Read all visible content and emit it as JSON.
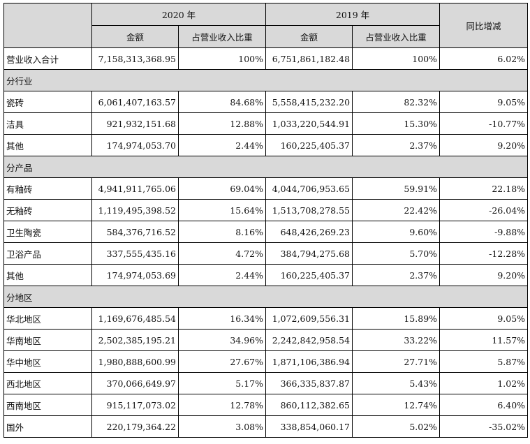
{
  "header": {
    "year_2020": "2020 年",
    "year_2019": "2019 年",
    "yoy_change": "同比增减",
    "amount_2020": "金额",
    "ratio_2020": "占营业收入比重",
    "amount_2019": "金额",
    "ratio_2019": "占营业收入比重"
  },
  "total": {
    "label": "营业收入合计",
    "amount_2020": "7,158,313,368.95",
    "ratio_2020": "100%",
    "amount_2019": "6,751,861,182.48",
    "ratio_2019": "100%",
    "yoy": "6.02%"
  },
  "sections": [
    {
      "title": "分行业",
      "rows": [
        {
          "label": "瓷砖",
          "amount_2020": "6,061,407,163.57",
          "ratio_2020": "84.68%",
          "amount_2019": "5,558,415,232.20",
          "ratio_2019": "82.32%",
          "yoy": "9.05%"
        },
        {
          "label": "洁具",
          "amount_2020": "921,932,151.68",
          "ratio_2020": "12.88%",
          "amount_2019": "1,033,220,544.91",
          "ratio_2019": "15.30%",
          "yoy": "-10.77%"
        },
        {
          "label": "其他",
          "amount_2020": "174,974,053.70",
          "ratio_2020": "2.44%",
          "amount_2019": "160,225,405.37",
          "ratio_2019": "2.37%",
          "yoy": "9.20%"
        }
      ]
    },
    {
      "title": "分产品",
      "rows": [
        {
          "label": "有釉砖",
          "amount_2020": "4,941,911,765.06",
          "ratio_2020": "69.04%",
          "amount_2019": "4,044,706,953.65",
          "ratio_2019": "59.91%",
          "yoy": "22.18%"
        },
        {
          "label": "无釉砖",
          "amount_2020": "1,119,495,398.52",
          "ratio_2020": "15.64%",
          "amount_2019": "1,513,708,278.55",
          "ratio_2019": "22.42%",
          "yoy": "-26.04%"
        },
        {
          "label": "卫生陶瓷",
          "amount_2020": "584,376,716.52",
          "ratio_2020": "8.16%",
          "amount_2019": "648,426,269.23",
          "ratio_2019": "9.60%",
          "yoy": "-9.88%"
        },
        {
          "label": "卫浴产品",
          "amount_2020": "337,555,435.16",
          "ratio_2020": "4.72%",
          "amount_2019": "384,794,275.68",
          "ratio_2019": "5.70%",
          "yoy": "-12.28%"
        },
        {
          "label": "其他",
          "amount_2020": "174,974,053.69",
          "ratio_2020": "2.44%",
          "amount_2019": "160,225,405.37",
          "ratio_2019": "2.37%",
          "yoy": "9.20%"
        }
      ]
    },
    {
      "title": "分地区",
      "rows": [
        {
          "label": "华北地区",
          "amount_2020": "1,169,676,485.54",
          "ratio_2020": "16.34%",
          "amount_2019": "1,072,609,556.31",
          "ratio_2019": "15.89%",
          "yoy": "9.05%"
        },
        {
          "label": "华南地区",
          "amount_2020": "2,502,385,195.21",
          "ratio_2020": "34.96%",
          "amount_2019": "2,242,842,958.54",
          "ratio_2019": "33.22%",
          "yoy": "11.57%"
        },
        {
          "label": "华中地区",
          "amount_2020": "1,980,888,600.99",
          "ratio_2020": "27.67%",
          "amount_2019": "1,871,106,386.94",
          "ratio_2019": "27.71%",
          "yoy": "5.87%"
        },
        {
          "label": "西北地区",
          "amount_2020": "370,066,649.97",
          "ratio_2020": "5.17%",
          "amount_2019": "366,335,837.87",
          "ratio_2019": "5.43%",
          "yoy": "1.02%"
        },
        {
          "label": "西南地区",
          "amount_2020": "915,117,073.02",
          "ratio_2020": "12.78%",
          "amount_2019": "860,112,382.65",
          "ratio_2019": "12.74%",
          "yoy": "6.40%"
        },
        {
          "label": "国外",
          "amount_2020": "220,179,364.22",
          "ratio_2020": "3.08%",
          "amount_2019": "338,854,060.17",
          "ratio_2019": "5.02%",
          "yoy": "-35.02%"
        }
      ]
    }
  ]
}
